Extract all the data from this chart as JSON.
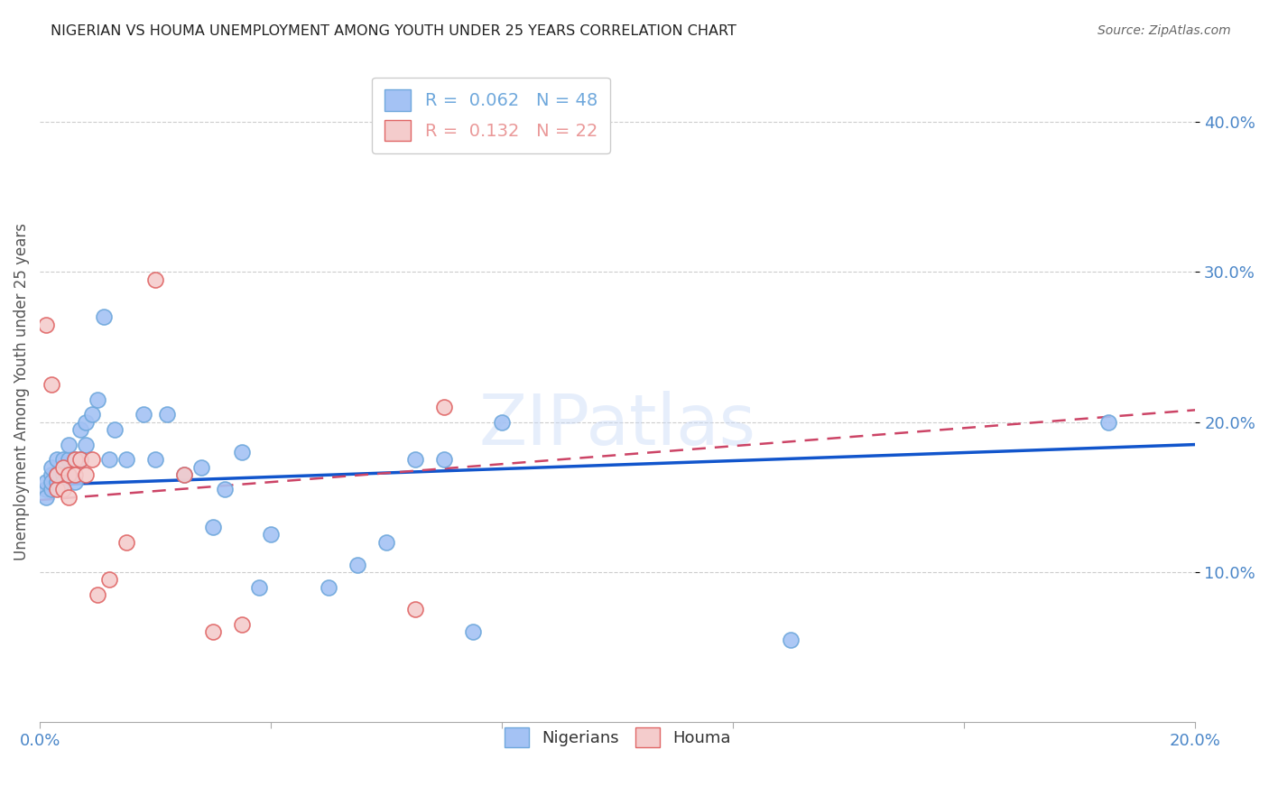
{
  "title": "NIGERIAN VS HOUMA UNEMPLOYMENT AMONG YOUTH UNDER 25 YEARS CORRELATION CHART",
  "source": "Source: ZipAtlas.com",
  "xlim": [
    0.0,
    0.2
  ],
  "ylim": [
    0.0,
    0.44
  ],
  "legend_entries": [
    {
      "label": "R =  0.062   N = 48",
      "color": "#6fa8dc"
    },
    {
      "label": "R =  0.132   N = 22",
      "color": "#ea9999"
    }
  ],
  "nigerians_x": [
    0.001,
    0.001,
    0.001,
    0.002,
    0.002,
    0.002,
    0.002,
    0.003,
    0.003,
    0.003,
    0.003,
    0.004,
    0.004,
    0.004,
    0.005,
    0.005,
    0.005,
    0.006,
    0.006,
    0.007,
    0.007,
    0.008,
    0.008,
    0.009,
    0.01,
    0.011,
    0.012,
    0.013,
    0.015,
    0.018,
    0.02,
    0.022,
    0.025,
    0.028,
    0.032,
    0.035,
    0.04,
    0.05,
    0.055,
    0.06,
    0.065,
    0.07,
    0.075,
    0.08,
    0.13,
    0.185,
    0.038,
    0.03
  ],
  "nigerians_y": [
    0.155,
    0.15,
    0.16,
    0.165,
    0.155,
    0.17,
    0.16,
    0.165,
    0.175,
    0.16,
    0.165,
    0.165,
    0.175,
    0.16,
    0.175,
    0.185,
    0.165,
    0.175,
    0.16,
    0.175,
    0.195,
    0.185,
    0.2,
    0.205,
    0.215,
    0.27,
    0.175,
    0.195,
    0.175,
    0.205,
    0.175,
    0.205,
    0.165,
    0.17,
    0.155,
    0.18,
    0.125,
    0.09,
    0.105,
    0.12,
    0.175,
    0.175,
    0.06,
    0.2,
    0.055,
    0.2,
    0.09,
    0.13
  ],
  "houma_x": [
    0.001,
    0.002,
    0.003,
    0.003,
    0.004,
    0.004,
    0.005,
    0.005,
    0.006,
    0.006,
    0.007,
    0.008,
    0.009,
    0.01,
    0.012,
    0.015,
    0.02,
    0.025,
    0.03,
    0.035,
    0.065,
    0.07
  ],
  "houma_y": [
    0.265,
    0.225,
    0.155,
    0.165,
    0.155,
    0.17,
    0.15,
    0.165,
    0.175,
    0.165,
    0.175,
    0.165,
    0.175,
    0.085,
    0.095,
    0.12,
    0.295,
    0.165,
    0.06,
    0.065,
    0.075,
    0.21
  ],
  "nigerian_line_x": [
    0.0,
    0.2
  ],
  "nigerian_line_y": [
    0.158,
    0.185
  ],
  "houma_line_x": [
    0.0,
    0.2
  ],
  "houma_line_y": [
    0.148,
    0.208
  ],
  "scatter_color_nigerian": "#a4c2f4",
  "scatter_color_houma": "#f4cccc",
  "scatter_edgecolor_nigerian": "#6fa8dc",
  "scatter_edgecolor_houma": "#e06666",
  "line_color_nigerian": "#1155cc",
  "line_color_houma": "#cc4466",
  "tick_color": "#4a86c8",
  "grid_color": "#cccccc",
  "title_color": "#222222",
  "source_color": "#666666",
  "ylabel": "Unemployment Among Youth under 25 years",
  "watermark": "ZIPatlas"
}
